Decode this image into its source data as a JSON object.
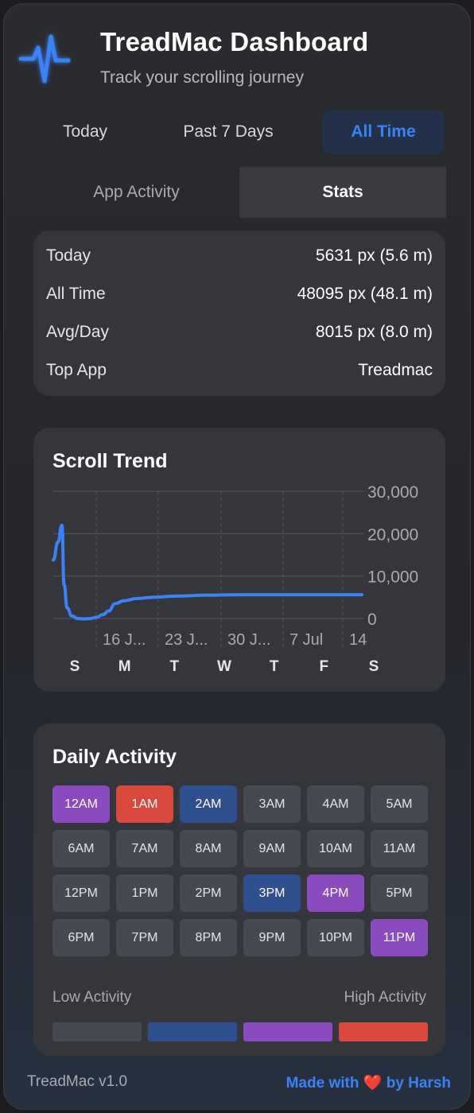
{
  "header": {
    "title": "TreadMac Dashboard",
    "subtitle": "Track your scrolling journey",
    "logo_icon": "pulse-icon",
    "logo_color": "#3b82f6"
  },
  "range_tabs": [
    {
      "label": "Today",
      "active": false
    },
    {
      "label": "Past 7 Days",
      "active": false
    },
    {
      "label": "All Time",
      "active": true
    }
  ],
  "view_tabs": [
    {
      "label": "App Activity",
      "active": false
    },
    {
      "label": "Stats",
      "active": true
    }
  ],
  "stats": [
    {
      "label": "Today",
      "value": "5631 px (5.6 m)"
    },
    {
      "label": "All Time",
      "value": "48095 px (48.1 m)"
    },
    {
      "label": "Avg/Day",
      "value": "8015 px (8.0 m)"
    },
    {
      "label": "Top App",
      "value": "Treadmac"
    }
  ],
  "chart_data": {
    "type": "line",
    "title": "Scroll Trend",
    "xlabel": "",
    "ylabel": "",
    "ylim": [
      0,
      30000
    ],
    "y_ticks": [
      "30,000",
      "20,000",
      "10,000",
      "0"
    ],
    "y_tick_values": [
      30000,
      20000,
      10000,
      0
    ],
    "x_tick_labels": [
      "16 J...",
      "23 J...",
      "30 J...",
      "7 Jul",
      "14"
    ],
    "day_labels": [
      "S",
      "M",
      "T",
      "W",
      "T",
      "F",
      "S"
    ],
    "grid": true,
    "line_color": "#3b82f6",
    "series": [
      {
        "x": [
          0,
          0.015,
          0.028,
          0.035,
          0.045,
          0.06,
          0.08,
          0.1,
          0.12,
          0.14,
          0.16,
          0.18,
          0.2,
          0.23,
          0.27,
          0.32,
          0.4,
          0.5,
          0.6,
          0.7,
          0.8,
          0.9,
          1.0
        ],
        "values": [
          13800,
          18000,
          22000,
          8000,
          2500,
          600,
          0,
          -100,
          0,
          300,
          900,
          1800,
          3500,
          4200,
          4700,
          5000,
          5300,
          5500,
          5600,
          5600,
          5600,
          5600,
          5600
        ]
      }
    ]
  },
  "activity": {
    "title": "Daily Activity",
    "hours": [
      {
        "label": "12AM",
        "level": 3
      },
      {
        "label": "1AM",
        "level": 4
      },
      {
        "label": "2AM",
        "level": 2
      },
      {
        "label": "3AM",
        "level": 1
      },
      {
        "label": "4AM",
        "level": 1
      },
      {
        "label": "5AM",
        "level": 1
      },
      {
        "label": "6AM",
        "level": 1
      },
      {
        "label": "7AM",
        "level": 1
      },
      {
        "label": "8AM",
        "level": 1
      },
      {
        "label": "9AM",
        "level": 1
      },
      {
        "label": "10AM",
        "level": 1
      },
      {
        "label": "11AM",
        "level": 1
      },
      {
        "label": "12PM",
        "level": 1
      },
      {
        "label": "1PM",
        "level": 1
      },
      {
        "label": "2PM",
        "level": 1
      },
      {
        "label": "3PM",
        "level": 2
      },
      {
        "label": "4PM",
        "level": 3
      },
      {
        "label": "5PM",
        "level": 1
      },
      {
        "label": "6PM",
        "level": 1
      },
      {
        "label": "7PM",
        "level": 1
      },
      {
        "label": "8PM",
        "level": 1
      },
      {
        "label": "9PM",
        "level": 1
      },
      {
        "label": "10PM",
        "level": 1
      },
      {
        "label": "11PM",
        "level": 3
      }
    ],
    "level_colors": [
      "#474950",
      "#474950",
      "#2f4f8f",
      "#8a4bbf",
      "#d9493e"
    ],
    "legend_low": "Low Activity",
    "legend_high": "High Activity",
    "legend_colors": [
      "#474950",
      "#2f4f8f",
      "#8a4bbf",
      "#d9493e"
    ]
  },
  "footer": {
    "version": "TreadMac v1.0",
    "credit_prefix": "Made with",
    "credit_heart": "❤️",
    "credit_suffix": "by Harsh"
  }
}
